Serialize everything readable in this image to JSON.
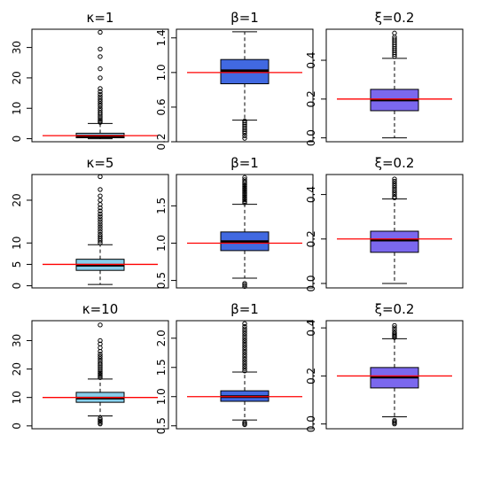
{
  "colors": {
    "kappa_box": "#87CEEB",
    "beta_box": "#4169E1",
    "xi_box": "#7B68EE",
    "reference_line": "#FF0000",
    "median": "#000000"
  },
  "chart_data": [
    {
      "type": "box",
      "title": "κ=1",
      "ylim": [
        -1,
        36
      ],
      "yticks": [
        0,
        10,
        20,
        30
      ],
      "ytick_labels": [
        "0",
        "10",
        "20",
        "30"
      ],
      "reference": 1,
      "box": {
        "whisker_low": 0,
        "q1": 0.3,
        "median": 0.85,
        "q3": 1.8,
        "whisker_high": 5
      },
      "outliers": [
        5.4,
        5.8,
        6.3,
        6.9,
        7.4,
        8,
        8.6,
        9.3,
        10,
        10.8,
        11.5,
        12.3,
        13,
        13.8,
        14.6,
        15.5,
        16.5,
        20,
        23,
        27,
        29.5,
        35
      ]
    },
    {
      "type": "box",
      "title": "β=1",
      "ylim": [
        0.2,
        1.5
      ],
      "yticks": [
        0.2,
        0.6,
        1.0,
        1.4
      ],
      "ytick_labels": [
        "0.2",
        "0.6",
        "1.0",
        "1.4"
      ],
      "reference": 1,
      "box": {
        "whisker_low": 0.45,
        "q1": 0.87,
        "median": 1.02,
        "q3": 1.15,
        "whisker_high": 1.47
      },
      "outliers": [
        0.24,
        0.27,
        0.3,
        0.32,
        0.34,
        0.36,
        0.38,
        0.4,
        0.42,
        0.44
      ]
    },
    {
      "type": "box",
      "title": "ξ=0.2",
      "ylim": [
        -0.02,
        0.56
      ],
      "yticks": [
        0.0,
        0.2,
        0.4
      ],
      "ytick_labels": [
        "0.0",
        "0.2",
        "0.4"
      ],
      "reference": 0.2,
      "box": {
        "whisker_low": 0,
        "q1": 0.14,
        "median": 0.195,
        "q3": 0.25,
        "whisker_high": 0.41
      },
      "outliers": [
        0.42,
        0.43,
        0.44,
        0.45,
        0.46,
        0.47,
        0.48,
        0.49,
        0.5,
        0.51,
        0.52,
        0.54
      ]
    },
    {
      "type": "box",
      "title": "κ=5",
      "ylim": [
        -0.5,
        26
      ],
      "yticks": [
        0,
        5,
        10,
        20
      ],
      "ytick_labels": [
        "0",
        "5",
        "10",
        "20"
      ],
      "reference": 5,
      "box": {
        "whisker_low": 0.3,
        "q1": 3.6,
        "median": 4.8,
        "q3": 6.2,
        "whisker_high": 9.6
      },
      "outliers": [
        10,
        10.5,
        11,
        11.5,
        12,
        12.6,
        13.2,
        13.8,
        14.4,
        15,
        15.6,
        16.2,
        16.8,
        17.5,
        18.2,
        19,
        20,
        21,
        22.5,
        25.5
      ]
    },
    {
      "type": "box",
      "title": "β=1",
      "ylim": [
        0.4,
        1.92
      ],
      "yticks": [
        0.5,
        1.0,
        1.5
      ],
      "ytick_labels": [
        "0.5",
        "1.0",
        "1.5"
      ],
      "reference": 1,
      "box": {
        "whisker_low": 0.53,
        "q1": 0.9,
        "median": 1.02,
        "q3": 1.15,
        "whisker_high": 1.52
      },
      "outliers": [
        0.42,
        0.44,
        0.46,
        1.54,
        1.56,
        1.58,
        1.6,
        1.62,
        1.64,
        1.66,
        1.68,
        1.7,
        1.72,
        1.74,
        1.76,
        1.78,
        1.8,
        1.82,
        1.85,
        1.88
      ]
    },
    {
      "type": "box",
      "title": "ξ=0.2",
      "ylim": [
        -0.02,
        0.49
      ],
      "yticks": [
        0.0,
        0.2,
        0.4
      ],
      "ytick_labels": [
        "0.0",
        "0.2",
        "0.4"
      ],
      "reference": 0.2,
      "box": {
        "whisker_low": 0,
        "q1": 0.14,
        "median": 0.195,
        "q3": 0.235,
        "whisker_high": 0.38
      },
      "outliers": [
        0.385,
        0.39,
        0.4,
        0.41,
        0.42,
        0.43,
        0.44,
        0.45,
        0.46,
        0.47
      ]
    },
    {
      "type": "box",
      "title": "κ=10",
      "ylim": [
        -1,
        37
      ],
      "yticks": [
        0,
        10,
        20,
        30
      ],
      "ytick_labels": [
        "0",
        "10",
        "20",
        "30"
      ],
      "reference": 10,
      "box": {
        "whisker_low": 3.5,
        "q1": 8.3,
        "median": 9.8,
        "q3": 11.8,
        "whisker_high": 16.5
      },
      "outliers": [
        0.7,
        1.2,
        1.7,
        2.2,
        2.7,
        17,
        17.5,
        18,
        18.5,
        19,
        19.6,
        20.2,
        20.8,
        21.4,
        22,
        22.8,
        23.6,
        24.4,
        25.2,
        26.2,
        27.5,
        28.8,
        30,
        35.5
      ]
    },
    {
      "type": "box",
      "title": "β=1",
      "ylim": [
        0.45,
        2.3
      ],
      "yticks": [
        0.5,
        1.0,
        1.5,
        2.0
      ],
      "ytick_labels": [
        "0.5",
        "1.0",
        "1.5",
        "2.0"
      ],
      "reference": 1,
      "box": {
        "whisker_low": 0.6,
        "q1": 0.92,
        "median": 1.0,
        "q3": 1.1,
        "whisker_high": 1.42
      },
      "outliers": [
        0.52,
        0.54,
        0.56,
        1.44,
        1.48,
        1.52,
        1.56,
        1.6,
        1.64,
        1.68,
        1.72,
        1.76,
        1.8,
        1.84,
        1.88,
        1.92,
        1.96,
        2.0,
        2.04,
        2.08,
        2.12,
        2.16,
        2.2,
        2.25
      ]
    },
    {
      "type": "box",
      "title": "ξ=0.2",
      "ylim": [
        -0.02,
        0.43
      ],
      "yticks": [
        0.0,
        0.2,
        0.4
      ],
      "ytick_labels": [
        "0.0",
        "0.2",
        "0.4"
      ],
      "reference": 0.2,
      "box": {
        "whisker_low": 0.03,
        "q1": 0.15,
        "median": 0.195,
        "q3": 0.235,
        "whisker_high": 0.355
      },
      "outliers": [
        0,
        0.005,
        0.01,
        0.015,
        0.36,
        0.365,
        0.37,
        0.375,
        0.38,
        0.39,
        0.4,
        0.41
      ]
    }
  ]
}
